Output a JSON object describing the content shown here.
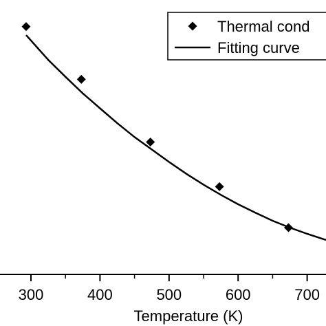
{
  "chart_data": {
    "type": "scatter",
    "xlabel": "Temperature (K)",
    "ylabel": "",
    "xlim": [
      0,
      750
    ],
    "x_ticks": [
      300,
      400,
      500,
      600,
      700
    ],
    "x_tick_labels": [
      "300",
      "400",
      "500",
      "600",
      "700"
    ],
    "grid": false,
    "legend_position": "top-right",
    "series": [
      {
        "name": "Thermal cond",
        "marker": "diamond",
        "color": "#000000",
        "x": [
          293,
          373,
          473,
          573,
          673
        ],
        "y": [
          1.0,
          0.754,
          0.462,
          0.254,
          0.063
        ]
      },
      {
        "name": "Fitting curve",
        "style": "line",
        "color": "#000000",
        "x": [
          293,
          325,
          350,
          375,
          400,
          425,
          450,
          475,
          500,
          525,
          550,
          575,
          600,
          625,
          650,
          675,
          700,
          725,
          750
        ],
        "y": [
          0.96,
          0.845,
          0.766,
          0.689,
          0.619,
          0.55,
          0.485,
          0.427,
          0.369,
          0.314,
          0.263,
          0.216,
          0.172,
          0.133,
          0.095,
          0.063,
          0.034,
          0.008,
          -0.011
        ]
      }
    ]
  }
}
